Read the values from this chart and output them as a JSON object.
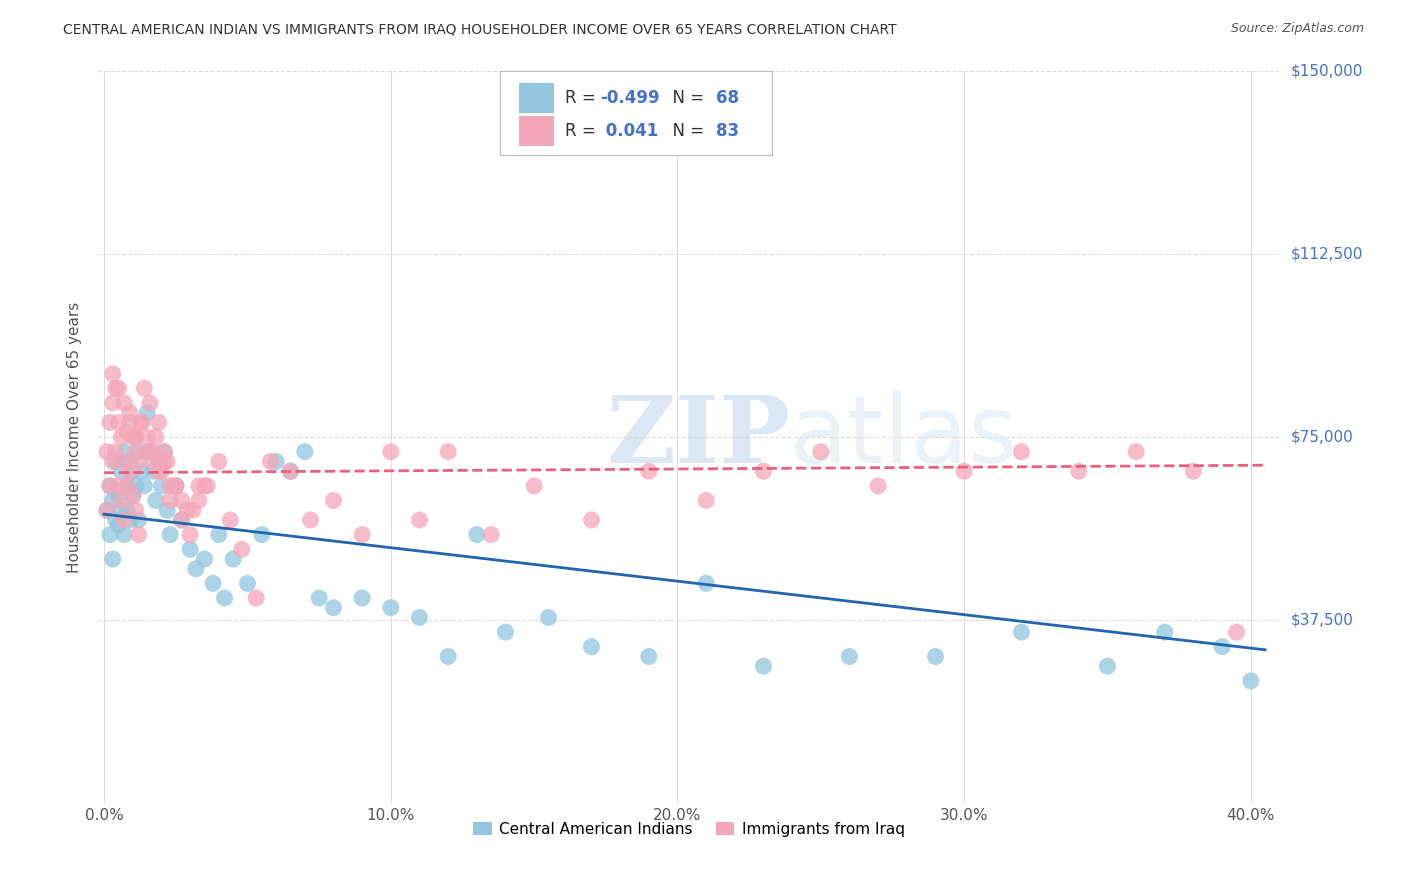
{
  "title": "CENTRAL AMERICAN INDIAN VS IMMIGRANTS FROM IRAQ HOUSEHOLDER INCOME OVER 65 YEARS CORRELATION CHART",
  "source": "Source: ZipAtlas.com",
  "xlabel_ticks": [
    "0.0%",
    "10.0%",
    "20.0%",
    "30.0%",
    "40.0%"
  ],
  "xlabel_tick_vals": [
    0.0,
    0.1,
    0.2,
    0.3,
    0.4
  ],
  "ylabel": "Householder Income Over 65 years",
  "ylabel_ticks": [
    "$0",
    "$37,500",
    "$75,000",
    "$112,500",
    "$150,000"
  ],
  "ylabel_tick_vals": [
    0,
    37500,
    75000,
    112500,
    150000
  ],
  "xlim": [
    -0.002,
    0.41
  ],
  "ylim": [
    0,
    150000
  ],
  "blue_R": -0.499,
  "blue_N": 68,
  "pink_R": 0.041,
  "pink_N": 83,
  "blue_color": "#92c5de",
  "pink_color": "#f4a6b8",
  "blue_line_color": "#2166ac",
  "pink_line_color": "#e8607a",
  "legend_label_blue": "Central American Indians",
  "legend_label_pink": "Immigrants from Iraq",
  "blue_points_x": [
    0.001,
    0.002,
    0.002,
    0.003,
    0.003,
    0.004,
    0.004,
    0.005,
    0.005,
    0.006,
    0.006,
    0.007,
    0.007,
    0.008,
    0.008,
    0.009,
    0.009,
    0.01,
    0.01,
    0.011,
    0.011,
    0.012,
    0.012,
    0.013,
    0.014,
    0.015,
    0.016,
    0.017,
    0.018,
    0.019,
    0.02,
    0.021,
    0.022,
    0.023,
    0.025,
    0.027,
    0.03,
    0.032,
    0.035,
    0.038,
    0.04,
    0.042,
    0.045,
    0.05,
    0.055,
    0.06,
    0.065,
    0.07,
    0.075,
    0.08,
    0.09,
    0.1,
    0.11,
    0.12,
    0.13,
    0.14,
    0.155,
    0.17,
    0.19,
    0.21,
    0.23,
    0.26,
    0.29,
    0.32,
    0.35,
    0.37,
    0.39,
    0.4
  ],
  "blue_points_y": [
    60000,
    55000,
    65000,
    50000,
    62000,
    58000,
    70000,
    63000,
    57000,
    68000,
    60000,
    72000,
    55000,
    65000,
    60000,
    70000,
    58000,
    68000,
    63000,
    75000,
    65000,
    72000,
    58000,
    68000,
    65000,
    80000,
    72000,
    68000,
    62000,
    70000,
    65000,
    72000,
    60000,
    55000,
    65000,
    58000,
    52000,
    48000,
    50000,
    45000,
    55000,
    42000,
    50000,
    45000,
    55000,
    70000,
    68000,
    72000,
    42000,
    40000,
    42000,
    40000,
    38000,
    30000,
    55000,
    35000,
    38000,
    32000,
    30000,
    45000,
    28000,
    30000,
    30000,
    35000,
    28000,
    35000,
    32000,
    25000
  ],
  "pink_points_x": [
    0.001,
    0.001,
    0.002,
    0.002,
    0.003,
    0.003,
    0.004,
    0.004,
    0.005,
    0.005,
    0.006,
    0.006,
    0.007,
    0.007,
    0.008,
    0.008,
    0.009,
    0.009,
    0.01,
    0.01,
    0.011,
    0.011,
    0.012,
    0.012,
    0.013,
    0.014,
    0.015,
    0.016,
    0.017,
    0.018,
    0.019,
    0.02,
    0.021,
    0.022,
    0.023,
    0.025,
    0.027,
    0.03,
    0.033,
    0.036,
    0.04,
    0.044,
    0.048,
    0.053,
    0.058,
    0.065,
    0.072,
    0.08,
    0.09,
    0.1,
    0.11,
    0.12,
    0.135,
    0.15,
    0.17,
    0.19,
    0.21,
    0.23,
    0.25,
    0.27,
    0.3,
    0.32,
    0.34,
    0.36,
    0.38,
    0.395,
    0.003,
    0.005,
    0.007,
    0.009,
    0.011,
    0.013,
    0.015,
    0.017,
    0.019,
    0.021,
    0.023,
    0.025,
    0.027,
    0.029,
    0.031,
    0.033,
    0.035
  ],
  "pink_points_y": [
    72000,
    60000,
    78000,
    65000,
    82000,
    70000,
    85000,
    72000,
    78000,
    65000,
    75000,
    62000,
    70000,
    58000,
    76000,
    65000,
    80000,
    68000,
    75000,
    63000,
    72000,
    60000,
    70000,
    55000,
    78000,
    85000,
    72000,
    82000,
    70000,
    75000,
    78000,
    68000,
    72000,
    70000,
    65000,
    65000,
    58000,
    55000,
    62000,
    65000,
    70000,
    58000,
    52000,
    42000,
    70000,
    68000,
    58000,
    62000,
    55000,
    72000,
    58000,
    72000,
    55000,
    65000,
    58000,
    68000,
    62000,
    68000,
    72000,
    65000,
    68000,
    72000,
    68000,
    72000,
    68000,
    35000,
    88000,
    85000,
    82000,
    78000,
    75000,
    78000,
    75000,
    72000,
    68000,
    70000,
    62000,
    65000,
    62000,
    60000,
    60000,
    65000,
    65000
  ],
  "watermark_zip": "ZIP",
  "watermark_atlas": "atlas",
  "background_color": "#ffffff",
  "grid_color": "#dddddd"
}
